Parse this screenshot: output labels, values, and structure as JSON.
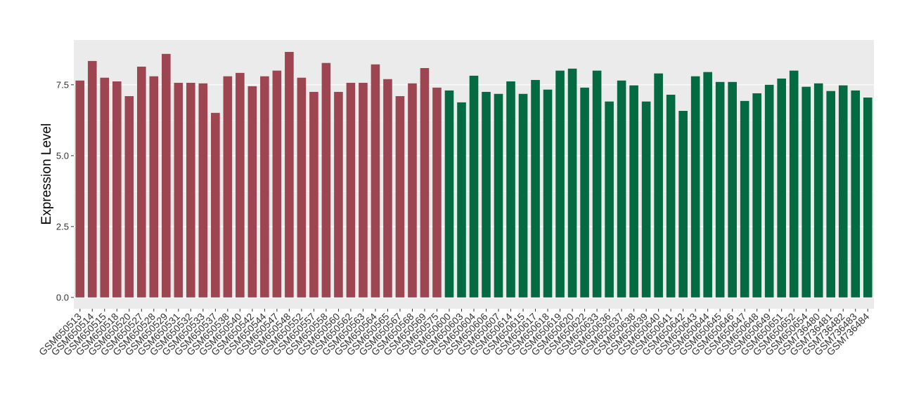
{
  "chart_data": {
    "type": "bar",
    "y_label": "Expression Level",
    "categories": [
      "GSM650513",
      "GSM650514",
      "GSM650515",
      "GSM650518",
      "GSM650520",
      "GSM650527",
      "GSM650528",
      "GSM650529",
      "GSM650531",
      "GSM650532",
      "GSM650533",
      "GSM650537",
      "GSM650538",
      "GSM650540",
      "GSM650542",
      "GSM650544",
      "GSM650547",
      "GSM650548",
      "GSM650552",
      "GSM650557",
      "GSM650558",
      "GSM650560",
      "GSM650562",
      "GSM650563",
      "GSM650564",
      "GSM650565",
      "GSM650567",
      "GSM650568",
      "GSM650569",
      "GSM650575",
      "GSM650600",
      "GSM650603",
      "GSM650604",
      "GSM650606",
      "GSM650607",
      "GSM650614",
      "GSM650615",
      "GSM650617",
      "GSM650618",
      "GSM650619",
      "GSM650620",
      "GSM650622",
      "GSM650633",
      "GSM650636",
      "GSM650637",
      "GSM650638",
      "GSM650639",
      "GSM650640",
      "GSM650641",
      "GSM650642",
      "GSM650643",
      "GSM650644",
      "GSM650645",
      "GSM650646",
      "GSM650647",
      "GSM650648",
      "GSM650649",
      "GSM650651",
      "GSM650652",
      "GSM650654",
      "GSM736480",
      "GSM736481",
      "GSM736482",
      "GSM736483",
      "GSM736484"
    ],
    "values": [
      7.65,
      8.34,
      7.75,
      7.62,
      7.1,
      8.14,
      7.8,
      8.59,
      7.57,
      7.57,
      7.55,
      6.51,
      7.8,
      7.92,
      7.45,
      7.8,
      8.0,
      8.66,
      7.75,
      7.25,
      8.27,
      7.25,
      7.57,
      7.57,
      8.22,
      7.7,
      7.1,
      7.55,
      8.09,
      7.4,
      7.3,
      6.88,
      7.82,
      7.25,
      7.18,
      7.62,
      7.18,
      7.67,
      7.33,
      8.0,
      8.07,
      7.4,
      8.0,
      6.91,
      7.65,
      7.48,
      6.91,
      7.9,
      7.15,
      6.58,
      7.8,
      7.95,
      7.6,
      7.6,
      6.93,
      7.2,
      7.5,
      7.72,
      8.0,
      7.43,
      7.55,
      7.28,
      7.48,
      7.3,
      7.05
    ],
    "colors": [
      "#9e4552",
      "#9e4552",
      "#9e4552",
      "#9e4552",
      "#9e4552",
      "#9e4552",
      "#9e4552",
      "#9e4552",
      "#9e4552",
      "#9e4552",
      "#9e4552",
      "#9e4552",
      "#9e4552",
      "#9e4552",
      "#9e4552",
      "#9e4552",
      "#9e4552",
      "#9e4552",
      "#9e4552",
      "#9e4552",
      "#9e4552",
      "#9e4552",
      "#9e4552",
      "#9e4552",
      "#9e4552",
      "#9e4552",
      "#9e4552",
      "#9e4552",
      "#9e4552",
      "#9e4552",
      "#046a41",
      "#046a41",
      "#046a41",
      "#046a41",
      "#046a41",
      "#046a41",
      "#046a41",
      "#046a41",
      "#046a41",
      "#046a41",
      "#046a41",
      "#046a41",
      "#046a41",
      "#046a41",
      "#046a41",
      "#046a41",
      "#046a41",
      "#046a41",
      "#046a41",
      "#046a41",
      "#046a41",
      "#046a41",
      "#046a41",
      "#046a41",
      "#046a41",
      "#046a41",
      "#046a41",
      "#046a41",
      "#046a41",
      "#046a41",
      "#046a41",
      "#046a41",
      "#046a41",
      "#046a41",
      "#046a41"
    ],
    "ylim": [
      -0.4,
      9.08
    ],
    "yticks": [
      {
        "value": 0,
        "label": "0.0"
      },
      2.5,
      {
        "value": 5,
        "label": "5.0"
      },
      7.5
    ],
    "grid": true
  }
}
